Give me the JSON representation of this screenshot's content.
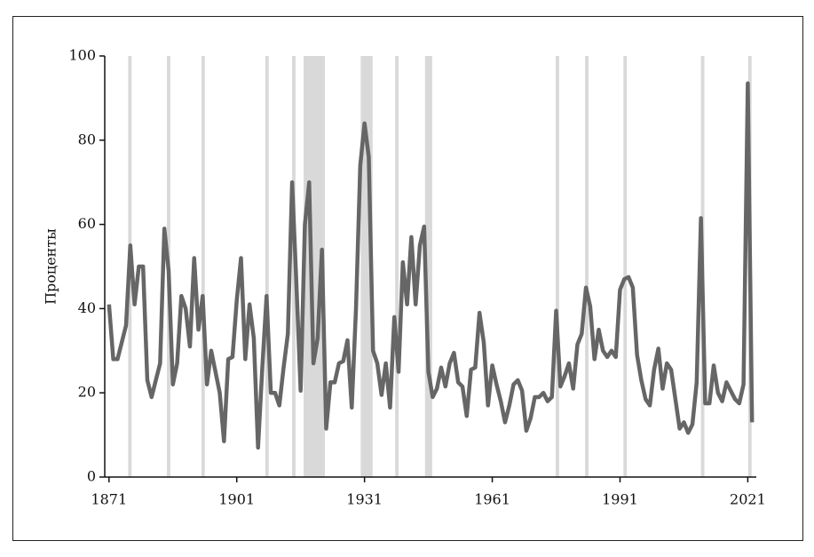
{
  "chart_data": {
    "type": "line",
    "ylabel": "Проценты",
    "x": [
      1871,
      1872,
      1873,
      1874,
      1875,
      1876,
      1877,
      1878,
      1879,
      1880,
      1881,
      1882,
      1883,
      1884,
      1885,
      1886,
      1887,
      1888,
      1889,
      1890,
      1891,
      1892,
      1893,
      1894,
      1895,
      1896,
      1897,
      1898,
      1899,
      1900,
      1901,
      1902,
      1903,
      1904,
      1905,
      1906,
      1907,
      1908,
      1909,
      1910,
      1911,
      1912,
      1913,
      1914,
      1915,
      1916,
      1917,
      1918,
      1919,
      1920,
      1921,
      1922,
      1923,
      1924,
      1925,
      1926,
      1927,
      1928,
      1929,
      1930,
      1931,
      1932,
      1933,
      1934,
      1935,
      1936,
      1937,
      1938,
      1939,
      1940,
      1941,
      1942,
      1943,
      1944,
      1945,
      1946,
      1947,
      1948,
      1949,
      1950,
      1951,
      1952,
      1953,
      1954,
      1955,
      1956,
      1957,
      1958,
      1959,
      1960,
      1961,
      1962,
      1963,
      1964,
      1965,
      1966,
      1967,
      1968,
      1969,
      1970,
      1971,
      1972,
      1973,
      1974,
      1975,
      1976,
      1977,
      1978,
      1979,
      1980,
      1981,
      1982,
      1983,
      1984,
      1985,
      1986,
      1987,
      1988,
      1989,
      1990,
      1991,
      1992,
      1993,
      1994,
      1995,
      1996,
      1997,
      1998,
      1999,
      2000,
      2001,
      2002,
      2003,
      2004,
      2005,
      2006,
      2007,
      2008,
      2009,
      2010,
      2011,
      2012,
      2013,
      2014,
      2015,
      2016,
      2017,
      2018,
      2019,
      2020,
      2021,
      2022
    ],
    "series": [
      {
        "color": "#666666",
        "values": [
          41,
          28,
          28,
          32,
          36,
          55,
          41,
          50,
          50,
          23,
          19,
          23,
          27,
          59,
          49,
          22,
          27,
          43,
          40,
          31,
          52,
          35,
          43,
          22,
          30,
          25,
          20,
          8.5,
          28,
          28.5,
          42,
          52,
          28,
          41,
          33,
          7,
          26,
          43,
          20,
          20,
          17,
          26,
          34,
          70,
          46,
          20.5,
          60,
          70,
          27,
          33,
          54,
          11.5,
          22.5,
          22.5,
          27,
          27.5,
          32.5,
          16.5,
          40,
          74,
          84,
          76,
          30,
          27,
          19.5,
          27,
          16.5,
          38,
          25,
          51,
          41,
          57,
          41,
          55,
          59.5,
          25,
          19,
          21,
          26,
          21.5,
          27,
          29.5,
          22.5,
          21.5,
          14.5,
          25.5,
          26,
          39,
          32,
          17,
          26.5,
          22,
          18,
          13,
          17,
          22,
          23,
          20.5,
          11,
          14,
          19,
          19,
          20,
          18,
          19,
          39.5,
          21.5,
          24,
          27,
          21,
          31.5,
          34,
          45,
          40.5,
          28,
          35,
          30,
          28.5,
          30,
          28.5,
          44.5,
          47,
          47.5,
          45,
          29,
          23,
          18.5,
          17,
          25.5,
          30.5,
          21,
          27,
          25.5,
          18.5,
          11.5,
          13,
          10.5,
          12.5,
          22.5,
          61.5,
          17.5,
          17.5,
          26.5,
          20,
          18,
          22.5,
          20.5,
          18.5,
          17.5,
          22,
          93.5,
          13
        ]
      }
    ],
    "shaded": [
      [
        1875.5,
        1876.3
      ],
      [
        1884.6,
        1885.4
      ],
      [
        1892.7,
        1893.5
      ],
      [
        1907.7,
        1908.5
      ],
      [
        1914.0,
        1914.8
      ],
      [
        1916.7,
        1921.7
      ],
      [
        1930.1,
        1932.9
      ],
      [
        1938.2,
        1939.0
      ],
      [
        1945.2,
        1946.9
      ],
      [
        1975.9,
        1976.7
      ],
      [
        1982.8,
        1983.6
      ],
      [
        1991.8,
        1992.6
      ],
      [
        2010.0,
        2010.8
      ],
      [
        2021.1,
        2021.9
      ]
    ],
    "shade_color": "#d9d9d9",
    "xlim": [
      1870,
      2023
    ],
    "xticks": [
      1871,
      1901,
      1931,
      1961,
      1991,
      2021
    ],
    "ylim": [
      0,
      100
    ],
    "yticks": [
      0,
      20,
      40,
      60,
      80,
      100
    ]
  }
}
